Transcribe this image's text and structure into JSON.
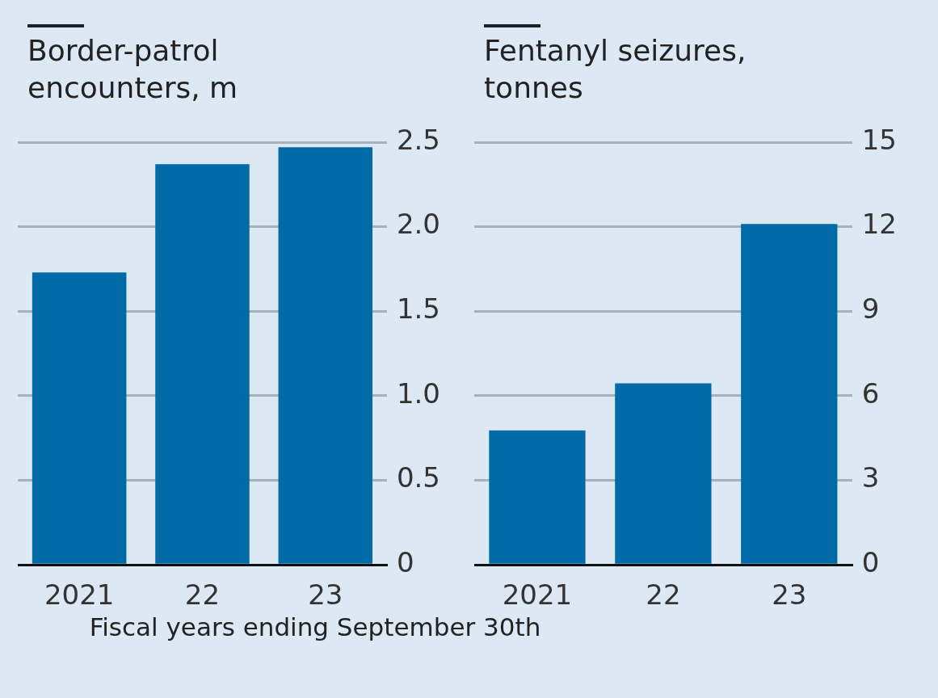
{
  "chart_data": [
    {
      "type": "bar",
      "title": "Border-patrol encounters, m",
      "categories": [
        "2021",
        "22",
        "23"
      ],
      "values": [
        1.73,
        2.37,
        2.47
      ],
      "color": "#006ba6",
      "ylim": [
        0,
        2.5
      ],
      "yticks": [
        0,
        {
          "value": 0.5,
          "label": "0.5"
        },
        {
          "value": 1,
          "label": "1.0"
        },
        {
          "value": 1.5,
          "label": "1.5"
        },
        {
          "value": 2,
          "label": "2.0"
        },
        {
          "value": 2.5,
          "label": "2.5"
        }
      ],
      "grid": "y",
      "annotations": [
        "Fiscal years ending September 30th"
      ]
    },
    {
      "type": "bar",
      "title": "Fentanyl seizures, tonnes",
      "categories": [
        "2021",
        "22",
        "23"
      ],
      "values": [
        4.77,
        6.44,
        12.1
      ],
      "color": "#006ba6",
      "ylim": [
        0,
        15
      ],
      "yticks": [
        0,
        3,
        6,
        9,
        12,
        15
      ],
      "grid": "y"
    }
  ]
}
